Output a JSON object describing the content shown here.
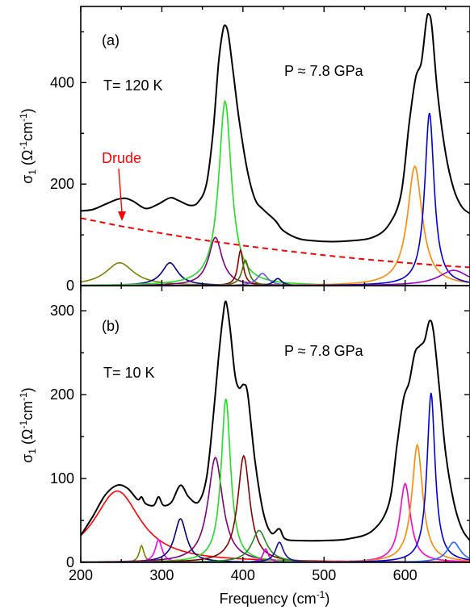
{
  "chart_data": [
    {
      "id": "a",
      "type": "line",
      "panel_label": "(a)",
      "temperature_label": "T= 120 K",
      "pressure_label": "P ≈ 7.8 GPa",
      "ylabel": "σ1 (Ω-1cm-1)",
      "xlim": [
        200,
        680
      ],
      "ylim": [
        0,
        550
      ],
      "yticks": [
        0,
        200,
        400
      ],
      "xticks": [
        200,
        300,
        400,
        500,
        600
      ],
      "annotation": {
        "text": "Drude",
        "color": "#ff0000"
      },
      "drude": {
        "color": "#ff0000",
        "dashed": true,
        "points": [
          [
            200,
            133
          ],
          [
            250,
            117
          ],
          [
            300,
            103
          ],
          [
            350,
            90
          ],
          [
            400,
            79
          ],
          [
            450,
            69
          ],
          [
            500,
            60
          ],
          [
            550,
            52
          ],
          [
            600,
            45
          ],
          [
            650,
            39
          ],
          [
            680,
            36
          ]
        ]
      },
      "oscillators": [
        {
          "center": 248,
          "amp": 45,
          "width": 42,
          "color": "#808000"
        },
        {
          "center": 310,
          "amp": 45,
          "width": 24,
          "color": "#00008b"
        },
        {
          "center": 366,
          "amp": 95,
          "width": 20,
          "color": "#800080"
        },
        {
          "center": 378,
          "amp": 363,
          "width": 19,
          "color": "#22dd22"
        },
        {
          "center": 397,
          "amp": 70,
          "width": 8,
          "color": "#8b0000"
        },
        {
          "center": 403,
          "amp": 50,
          "width": 10,
          "color": "#4b6b00"
        },
        {
          "center": 424,
          "amp": 24,
          "width": 16,
          "color": "#6655dd"
        },
        {
          "center": 443,
          "amp": 14,
          "width": 12,
          "color": "#000080"
        },
        {
          "center": 612,
          "amp": 235,
          "width": 22,
          "color": "#ff8800"
        },
        {
          "center": 630,
          "amp": 340,
          "width": 14,
          "color": "#0000dd"
        },
        {
          "center": 660,
          "amp": 30,
          "width": 45,
          "color": "#9900cc"
        }
      ],
      "total": {
        "color": "#000000",
        "points": [
          [
            200,
            147
          ],
          [
            215,
            150
          ],
          [
            230,
            160
          ],
          [
            245,
            170
          ],
          [
            255,
            172
          ],
          [
            265,
            166
          ],
          [
            280,
            152
          ],
          [
            295,
            160
          ],
          [
            310,
            173
          ],
          [
            320,
            168
          ],
          [
            335,
            158
          ],
          [
            345,
            165
          ],
          [
            355,
            200
          ],
          [
            363,
            300
          ],
          [
            370,
            440
          ],
          [
            375,
            500
          ],
          [
            378,
            513
          ],
          [
            382,
            495
          ],
          [
            388,
            420
          ],
          [
            395,
            330
          ],
          [
            405,
            230
          ],
          [
            415,
            170
          ],
          [
            425,
            150
          ],
          [
            440,
            128
          ],
          [
            450,
            108
          ],
          [
            470,
            92
          ],
          [
            500,
            87
          ],
          [
            530,
            88
          ],
          [
            560,
            95
          ],
          [
            580,
            120
          ],
          [
            595,
            180
          ],
          [
            605,
            320
          ],
          [
            613,
            410
          ],
          [
            620,
            440
          ],
          [
            626,
            520
          ],
          [
            629,
            535
          ],
          [
            633,
            510
          ],
          [
            640,
            380
          ],
          [
            650,
            260
          ],
          [
            660,
            190
          ],
          [
            670,
            155
          ],
          [
            680,
            142
          ]
        ]
      }
    },
    {
      "id": "b",
      "type": "line",
      "panel_label": "(b)",
      "temperature_label": "T= 10 K",
      "pressure_label": "P ≈ 7.8 GPa",
      "ylabel": "σ1 (Ω-1cm-1)",
      "xlabel": "Frequency (cm-1)",
      "xlim": [
        200,
        680
      ],
      "ylim": [
        0,
        330
      ],
      "yticks": [
        0,
        100,
        200,
        300
      ],
      "xticks": [
        200,
        300,
        400,
        500,
        600
      ],
      "oscillators": [
        {
          "center": 245,
          "amp": 85,
          "width": 70,
          "color": "#ff0000"
        },
        {
          "center": 275,
          "amp": 20,
          "width": 7,
          "color": "#808000"
        },
        {
          "center": 296,
          "amp": 27,
          "width": 10,
          "color": "#ff00ff"
        },
        {
          "center": 323,
          "amp": 52,
          "width": 18,
          "color": "#00008b"
        },
        {
          "center": 366,
          "amp": 125,
          "width": 22,
          "color": "#800080"
        },
        {
          "center": 379,
          "amp": 195,
          "width": 14,
          "color": "#22dd22"
        },
        {
          "center": 401,
          "amp": 127,
          "width": 18,
          "color": "#8b0000"
        },
        {
          "center": 420,
          "amp": 38,
          "width": 22,
          "color": "#228b22"
        },
        {
          "center": 428,
          "amp": 16,
          "width": 8,
          "color": "#dd00dd"
        },
        {
          "center": 445,
          "amp": 24,
          "width": 12,
          "color": "#1111aa"
        },
        {
          "center": 600,
          "amp": 94,
          "width": 16,
          "color": "#ff00cc"
        },
        {
          "center": 615,
          "amp": 140,
          "width": 16,
          "color": "#ff8800"
        },
        {
          "center": 632,
          "amp": 202,
          "width": 12,
          "color": "#0000dd"
        },
        {
          "center": 660,
          "amp": 24,
          "width": 20,
          "color": "#2266ff"
        }
      ],
      "total": {
        "color": "#000000",
        "points": [
          [
            200,
            32
          ],
          [
            215,
            55
          ],
          [
            230,
            80
          ],
          [
            245,
            92
          ],
          [
            258,
            88
          ],
          [
            270,
            75
          ],
          [
            275,
            78
          ],
          [
            280,
            70
          ],
          [
            290,
            68
          ],
          [
            296,
            78
          ],
          [
            302,
            68
          ],
          [
            312,
            72
          ],
          [
            323,
            92
          ],
          [
            333,
            78
          ],
          [
            345,
            72
          ],
          [
            355,
            100
          ],
          [
            363,
            170
          ],
          [
            370,
            245
          ],
          [
            375,
            290
          ],
          [
            379,
            311
          ],
          [
            384,
            280
          ],
          [
            390,
            225
          ],
          [
            395,
            208
          ],
          [
            401,
            212
          ],
          [
            406,
            200
          ],
          [
            415,
            120
          ],
          [
            425,
            60
          ],
          [
            435,
            35
          ],
          [
            445,
            40
          ],
          [
            452,
            28
          ],
          [
            470,
            26
          ],
          [
            500,
            26
          ],
          [
            530,
            28
          ],
          [
            560,
            38
          ],
          [
            580,
            70
          ],
          [
            590,
            140
          ],
          [
            598,
            195
          ],
          [
            605,
            215
          ],
          [
            612,
            250
          ],
          [
            618,
            258
          ],
          [
            624,
            265
          ],
          [
            630,
            288
          ],
          [
            635,
            275
          ],
          [
            642,
            210
          ],
          [
            650,
            130
          ],
          [
            660,
            72
          ],
          [
            670,
            40
          ],
          [
            680,
            26
          ]
        ]
      }
    }
  ]
}
